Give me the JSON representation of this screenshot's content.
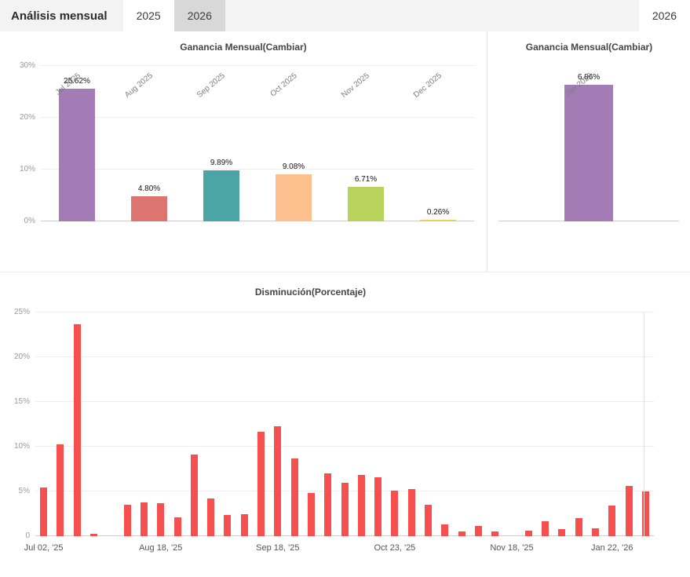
{
  "header": {
    "title": "Análisis mensual",
    "left_tabs": [
      {
        "label": "2025",
        "active": true
      },
      {
        "label": "2026",
        "active": false
      }
    ],
    "right_tab": {
      "label": "2026",
      "active": true
    }
  },
  "chart_data": [
    {
      "type": "bar",
      "title": "Ganancia Mensual(Cambiar)",
      "categories": [
        "Jul 2025",
        "Aug 2025",
        "Sep 2025",
        "Oct 2025",
        "Nov 2025",
        "Dec 2025"
      ],
      "values": [
        25.62,
        4.8,
        9.89,
        9.08,
        6.71,
        0.26
      ],
      "value_labels": [
        "25.62%",
        "4.80%",
        "9.89%",
        "9.08%",
        "6.71%",
        "0.26%"
      ],
      "bar_colors": [
        "#a47cb5",
        "#dc7570",
        "#4aa5a4",
        "#fcc08f",
        "#b7d35e",
        "#e9cd62"
      ],
      "ylim": [
        0,
        30
      ],
      "yticks": [
        0,
        10,
        20,
        30
      ],
      "ytick_labels": [
        "0%",
        "10%",
        "20%",
        "30%"
      ],
      "grid": true,
      "legend": false
    },
    {
      "type": "bar",
      "title": "Ganancia Mensual(Cambiar)",
      "categories": [
        "Jan 2026"
      ],
      "values": [
        6.86
      ],
      "value_labels": [
        "6.86%"
      ],
      "bar_colors": [
        "#a47cb5"
      ],
      "ylim": [
        0,
        7.8
      ],
      "yticks": [
        0
      ],
      "ytick_labels": [
        ""
      ],
      "grid": false,
      "legend": false
    },
    {
      "type": "bar",
      "title": "Disminución(Porcentaje)",
      "values": [
        5.4,
        10.3,
        23.7,
        0.3,
        0,
        3.5,
        3.8,
        3.7,
        2.1,
        9.1,
        4.2,
        2.4,
        2.5,
        11.7,
        12.3,
        8.7,
        4.8,
        7.0,
        6.0,
        6.8,
        6.6,
        5.1,
        5.3,
        3.5,
        1.3,
        0.5,
        1.1,
        0.5,
        0,
        0.6,
        1.7,
        0.8,
        2.0,
        0.9,
        3.4,
        5.6,
        5.0
      ],
      "bar_color": "#f6504e",
      "ylim": [
        0,
        25
      ],
      "yticks": [
        0,
        5,
        10,
        15,
        20,
        25
      ],
      "ytick_labels": [
        "0",
        "5%",
        "10%",
        "15%",
        "20%",
        "25%"
      ],
      "xticks": [
        {
          "index": 0,
          "label": "Jul 02, '25"
        },
        {
          "index": 7,
          "label": "Aug 18, '25"
        },
        {
          "index": 14,
          "label": "Sep 18, '25"
        },
        {
          "index": 21,
          "label": "Oct 23, '25"
        },
        {
          "index": 28,
          "label": "Nov 18, '25"
        },
        {
          "index": 34,
          "label": "Jan 22, '26"
        }
      ],
      "grid": true,
      "legend": false
    }
  ]
}
